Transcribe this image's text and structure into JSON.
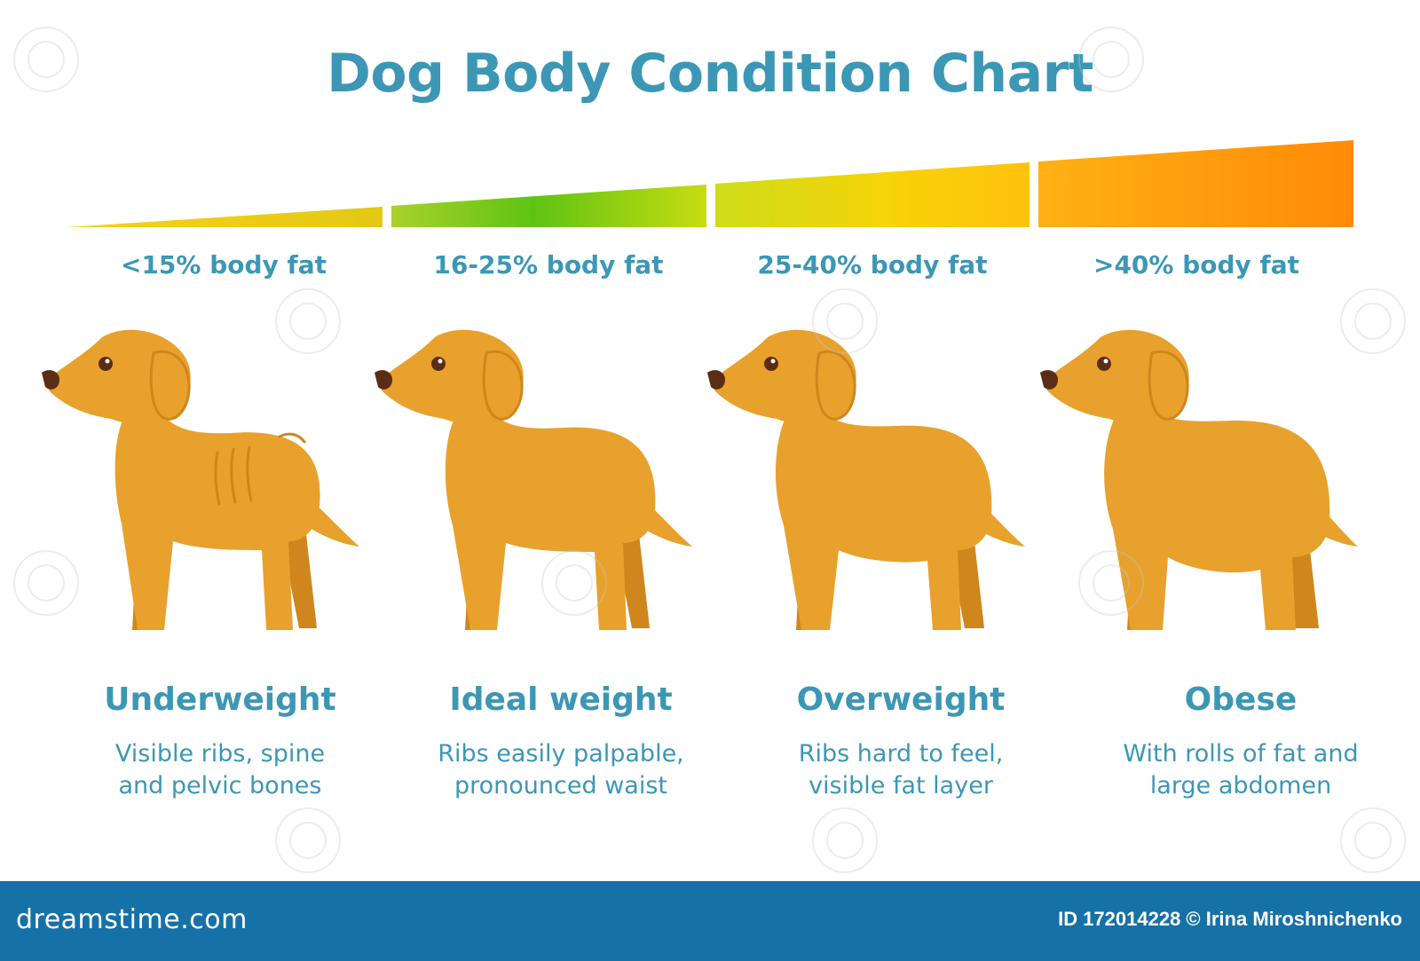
{
  "title": "Dog Body Condition Chart",
  "colors": {
    "text": "#3c97b5",
    "dog_body": "#e8a12c",
    "dog_shadow": "#cf861c",
    "footer_bg": "#1671a7"
  },
  "scale": {
    "segments": [
      {
        "fat_label": "<15% body fat",
        "colors": [
          "#f6d31a",
          "#e3c814"
        ]
      },
      {
        "fat_label": "16-25% body fat",
        "colors": [
          "#a9d12a",
          "#5fc313",
          "#c7dc12"
        ]
      },
      {
        "fat_label": "25-40% body fat",
        "colors": [
          "#cfdc1a",
          "#f7d309",
          "#ffc20c"
        ]
      },
      {
        "fat_label": ">40% body fat",
        "colors": [
          "#ffb114",
          "#ff8a08"
        ]
      }
    ]
  },
  "conditions": [
    {
      "name": "Underweight",
      "desc_line1": "Visible ribs, spine",
      "desc_line2": "and pelvic bones"
    },
    {
      "name": "Ideal weight",
      "desc_line1": "Ribs easily palpable,",
      "desc_line2": "pronounced waist"
    },
    {
      "name": "Overweight",
      "desc_line1": "Ribs hard to feel,",
      "desc_line2": "visible fat layer"
    },
    {
      "name": "Obese",
      "desc_line1": "With rolls of fat and",
      "desc_line2": "large abdomen"
    }
  ],
  "footer": {
    "logo": "dreamstime.com",
    "credit": "ID 172014228 © Irina Miroshnichenko"
  }
}
